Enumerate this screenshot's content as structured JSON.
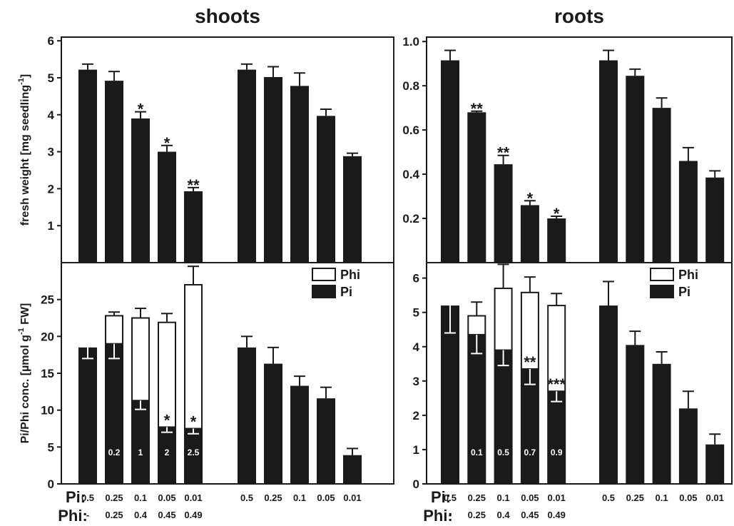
{
  "chart_data": [
    {
      "type": "bar",
      "title": "shoots",
      "ylabel": "fresh weight [mg seedling",
      "ylabel_sup": "-1",
      "ylabel_end": "]",
      "ylim": [
        0,
        6.1
      ],
      "yticks": [
        1,
        2,
        3,
        4,
        5,
        6
      ],
      "color": "#1a1a1a",
      "values": [
        5.22,
        4.92,
        3.9,
        3.0,
        1.93,
        5.22,
        5.02,
        4.78,
        3.97,
        2.88
      ],
      "errors": [
        0.15,
        0.25,
        0.18,
        0.17,
        0.1,
        0.15,
        0.28,
        0.35,
        0.18,
        0.08
      ],
      "annotations": [
        null,
        null,
        "*",
        "*",
        "**",
        null,
        null,
        null,
        null,
        null
      ]
    },
    {
      "type": "stacked_bar",
      "ylabel": "Pi/Phi conc. [µmol g",
      "ylabel_sup": "-1",
      "ylabel_end": " FW]",
      "ylim": [
        0,
        30
      ],
      "yticks": [
        0,
        5,
        10,
        15,
        20,
        25
      ],
      "legend": "upper right",
      "category_label": "Pi:",
      "categories": [
        "0.5",
        "0.25",
        "0.1",
        "0.05",
        "0.01",
        "0.5",
        "0.25",
        "0.1",
        "0.05",
        "0.01"
      ],
      "phi_category_label": "Phi:",
      "phi_categories": [
        "-",
        "0.25",
        "0.4",
        "0.45",
        "0.49",
        null,
        null,
        null,
        null,
        null
      ],
      "series": [
        {
          "name": "Pi",
          "color": "#1a1a1a",
          "values": [
            18.5,
            19,
            11.3,
            7.7,
            7.5,
            18.5,
            16.3,
            13.3,
            11.6,
            3.9
          ],
          "errors": [
            1.5,
            2,
            1.2,
            0.7,
            0.7,
            1.5,
            2.2,
            1.3,
            1.5,
            0.9
          ]
        },
        {
          "name": "Phi",
          "color": "#ffffff",
          "values": [
            null,
            3.8,
            11.2,
            14.2,
            19.5,
            null,
            null,
            null,
            null,
            null
          ],
          "errors": [
            null,
            0.5,
            1.3,
            1.2,
            2.5,
            null,
            null,
            null,
            null,
            null
          ]
        }
      ],
      "ratios": [
        null,
        0.2,
        1,
        2,
        2.5,
        null,
        null,
        null,
        null,
        null
      ],
      "annotations": [
        null,
        null,
        null,
        "*",
        "*",
        null,
        null,
        null,
        null,
        null
      ]
    },
    {
      "type": "bar",
      "title": "roots",
      "ylim": [
        0,
        1.02
      ],
      "yticks": [
        0.2,
        0.4,
        0.6,
        0.8,
        {
          "value": 1,
          "label": "1.0"
        }
      ],
      "color": "#1a1a1a",
      "values": [
        0.915,
        0.68,
        0.445,
        0.26,
        0.2,
        0.915,
        0.845,
        0.7,
        0.46,
        0.385
      ],
      "errors": [
        0.045,
        0.005,
        0.04,
        0.02,
        0.01,
        0.045,
        0.03,
        0.045,
        0.06,
        0.03
      ],
      "annotations": [
        null,
        "**",
        "**",
        "*",
        "*",
        null,
        null,
        null,
        null,
        null
      ]
    },
    {
      "type": "stacked_bar",
      "ylim": [
        0,
        6.45
      ],
      "yticks": [
        0,
        1,
        2,
        3,
        4,
        5,
        6
      ],
      "legend": "upper right",
      "category_label": "Pi:",
      "categories": [
        "0.5",
        "0.25",
        "0.1",
        "0.05",
        "0.01",
        "0.5",
        "0.25",
        "0.1",
        "0.05",
        "0.01"
      ],
      "phi_category_label": "Phi:",
      "phi_categories": [
        "-",
        "0.25",
        "0.4",
        "0.45",
        "0.49",
        null,
        null,
        null,
        null,
        null
      ],
      "series": [
        {
          "name": "Pi",
          "color": "#1a1a1a",
          "values": [
            5.2,
            4.35,
            3.9,
            3.35,
            2.7,
            5.2,
            4.05,
            3.5,
            2.2,
            1.15
          ],
          "errors": [
            0.8,
            0.55,
            0.45,
            0.45,
            0.3,
            0.7,
            0.4,
            0.35,
            0.5,
            0.3
          ]
        },
        {
          "name": "Phi",
          "color": "#ffffff",
          "values": [
            null,
            0.55,
            1.8,
            2.23,
            2.5,
            null,
            null,
            null,
            null,
            null
          ],
          "errors": [
            null,
            0.4,
            0.7,
            0.45,
            0.35,
            null,
            null,
            null,
            null,
            null
          ]
        }
      ],
      "ratios": [
        null,
        0.1,
        0.5,
        0.7,
        0.9,
        null,
        null,
        null,
        null,
        null
      ],
      "annotations": [
        null,
        null,
        null,
        "**",
        "***",
        null,
        null,
        null,
        null,
        null
      ]
    }
  ]
}
